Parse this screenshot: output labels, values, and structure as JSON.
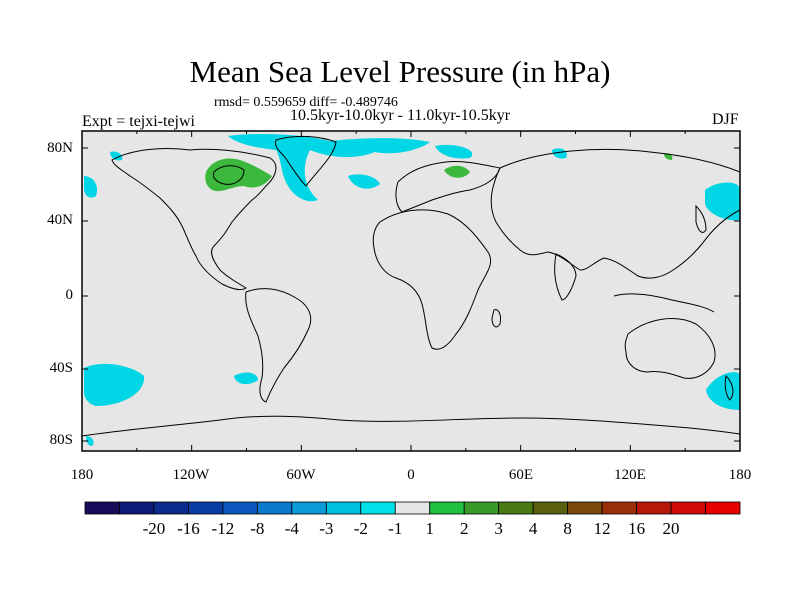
{
  "header": {
    "title": "Mean Sea Level Pressure (in hPa)",
    "stats": "rmsd= 0.559659 diff= -0.489746",
    "period": "10.5kyr-10.0kyr - 11.0kyr-10.5kyr",
    "expt": "Expt = tejxi-tejwi",
    "season": "DJF"
  },
  "map": {
    "lat_labels": [
      "80N",
      "40N",
      "0",
      "40S",
      "80S"
    ],
    "lon_labels": [
      "180",
      "120W",
      "60W",
      "0",
      "60E",
      "120E",
      "180"
    ],
    "land_color": "#e6e6e6",
    "anomaly_regions": [
      {
        "name": "north-atlantic-arctic",
        "level": "-2 to -1",
        "color": "#00d6e6"
      },
      {
        "name": "hudson-bay-labrador",
        "level": "1 to 2",
        "color": "#3cb83c"
      },
      {
        "name": "scandinavia",
        "level": "1 to 2",
        "color": "#3cb83c"
      },
      {
        "name": "north-pacific",
        "level": "-2 to -1",
        "color": "#00d6e6"
      },
      {
        "name": "south-pacific",
        "level": "-2 to -1",
        "color": "#00d6e6"
      }
    ]
  },
  "colorbar": {
    "colors": [
      "#1a0a5a",
      "#0c1a78",
      "#0a2a8e",
      "#0a3ca6",
      "#0a56bc",
      "#0a78cc",
      "#0a9ad8",
      "#00c0e0",
      "#00e0e8",
      "#e6e6e6",
      "#20c040",
      "#3a9a28",
      "#4a7a14",
      "#5a6010",
      "#7a4a08",
      "#9a3008",
      "#b81808",
      "#d00808",
      "#e80000"
    ],
    "labels": [
      "-20",
      "-16",
      "-12",
      "-8",
      "-4",
      "-3",
      "-2",
      "-1",
      "1",
      "2",
      "3",
      "4",
      "8",
      "12",
      "16",
      "20"
    ]
  }
}
